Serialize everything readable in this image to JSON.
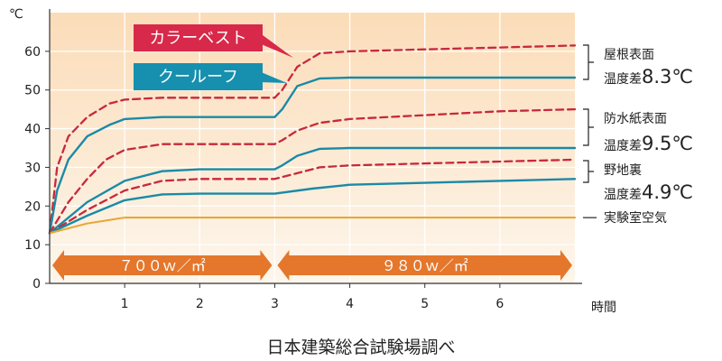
{
  "chart_data": {
    "type": "line",
    "y_unit": "℃",
    "x_unit": "時間",
    "xlim": [
      0,
      7
    ],
    "ylim": [
      0,
      70
    ],
    "x_ticks": [
      "1",
      "2",
      "3",
      "4",
      "5",
      "6"
    ],
    "y_ticks": [
      "0",
      "10",
      "20",
      "30",
      "40",
      "50",
      "60"
    ],
    "grid": true,
    "colors": {
      "red": "#c8283c",
      "teal": "#1a8aa6",
      "orange": "#e7a838",
      "arrow": "#e4772c",
      "bg_top": "#fbdcb8",
      "bg_bottom": "#fdf6ec"
    },
    "legend": [
      {
        "label": "カラーベスト",
        "color": "#d8294a"
      },
      {
        "label": "クールーフ",
        "color": "#178fae"
      }
    ],
    "series": [
      {
        "group": "屋根表面",
        "material": "カラーベスト",
        "x": [
          0,
          0.1,
          0.25,
          0.5,
          0.8,
          1,
          1.5,
          2,
          2.5,
          3,
          3.1,
          3.3,
          3.6,
          4,
          5,
          6,
          7
        ],
        "y": [
          13,
          30,
          38,
          43,
          46.5,
          47.5,
          48,
          48,
          48,
          48,
          50,
          56,
          59.5,
          60,
          60.5,
          61,
          61.5
        ]
      },
      {
        "group": "屋根表面",
        "material": "クールーフ",
        "x": [
          0,
          0.1,
          0.25,
          0.5,
          0.8,
          1,
          1.5,
          2,
          2.5,
          3,
          3.1,
          3.3,
          3.6,
          4,
          5,
          6,
          7
        ],
        "y": [
          13,
          24,
          32,
          38,
          41,
          42.5,
          43,
          43,
          43,
          43,
          45,
          51,
          53,
          53.2,
          53.2,
          53.2,
          53.2
        ]
      },
      {
        "group": "防水紙表面",
        "material": "カラーベスト",
        "x": [
          0,
          0.25,
          0.5,
          0.75,
          1,
          1.5,
          2,
          2.5,
          3,
          3.1,
          3.3,
          3.6,
          4,
          5,
          6,
          7
        ],
        "y": [
          13,
          21,
          27,
          32,
          34.5,
          36,
          36,
          36,
          36,
          37,
          39.5,
          41.5,
          42.5,
          43.5,
          44.5,
          45
        ]
      },
      {
        "group": "防水紙表面",
        "material": "クールーフ",
        "x": [
          0,
          0.5,
          1,
          1.5,
          2,
          2.5,
          3,
          3.1,
          3.3,
          3.6,
          4,
          5,
          6,
          7
        ],
        "y": [
          13,
          21,
          26.5,
          29,
          29.5,
          29.5,
          29.5,
          30.5,
          33,
          34.8,
          35,
          35,
          35,
          35
        ]
      },
      {
        "group": "野地裏",
        "material": "カラーベスト",
        "x": [
          0,
          0.5,
          1,
          1.5,
          2,
          2.5,
          3,
          3.3,
          3.6,
          4,
          5,
          6,
          7
        ],
        "y": [
          13,
          19,
          24,
          26.5,
          27,
          27,
          27,
          28.5,
          30,
          30.5,
          31,
          31.5,
          32
        ]
      },
      {
        "group": "野地裏",
        "material": "クールーフ",
        "x": [
          0,
          0.5,
          1,
          1.5,
          2,
          2.5,
          3,
          3.5,
          4,
          5,
          6,
          7
        ],
        "y": [
          13,
          17.5,
          21.5,
          23,
          23.2,
          23.2,
          23.2,
          24.5,
          25.5,
          26,
          26.5,
          27
        ]
      },
      {
        "group": "実験室空気",
        "material": "",
        "x": [
          0,
          0.5,
          1,
          3,
          5,
          7
        ],
        "y": [
          13,
          15.5,
          17,
          17,
          17,
          17
        ]
      }
    ],
    "annotations": [
      {
        "line1": "屋根表面",
        "line2_prefix": "温度差",
        "value": "8.3℃"
      },
      {
        "line1": "防水紙表面",
        "line2_prefix": "温度差",
        "value": "9.5℃"
      },
      {
        "line1": "野地裏",
        "line2_prefix": "温度差",
        "value": "4.9℃"
      },
      {
        "line1": "実験室空気",
        "line2_prefix": "",
        "value": ""
      }
    ],
    "periods": [
      {
        "label": "７００ｗ／㎡",
        "x_range": [
          0,
          3
        ]
      },
      {
        "label": "９８０ｗ／㎡",
        "x_range": [
          3,
          7
        ]
      }
    ],
    "source": "日本建築総合試験場調べ"
  }
}
